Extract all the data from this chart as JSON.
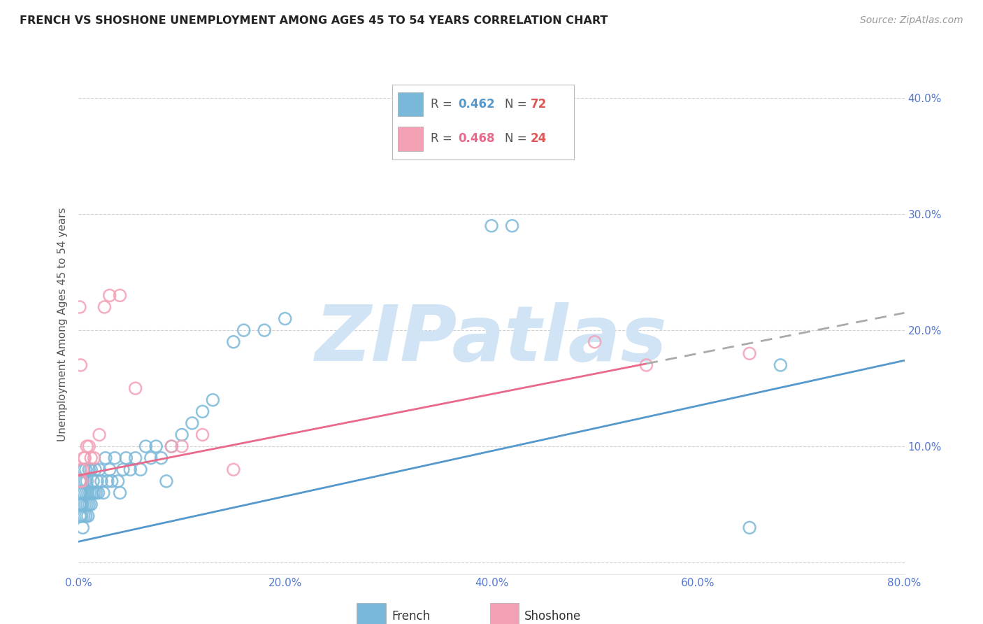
{
  "title": "FRENCH VS SHOSHONE UNEMPLOYMENT AMONG AGES 45 TO 54 YEARS CORRELATION CHART",
  "source": "Source: ZipAtlas.com",
  "ylabel": "Unemployment Among Ages 45 to 54 years",
  "xlim": [
    0.0,
    0.8
  ],
  "ylim": [
    -0.01,
    0.42
  ],
  "xticks": [
    0.0,
    0.1,
    0.2,
    0.3,
    0.4,
    0.5,
    0.6,
    0.7,
    0.8
  ],
  "yticks": [
    0.0,
    0.1,
    0.2,
    0.3,
    0.4
  ],
  "ytick_labels": [
    "",
    "10.0%",
    "20.0%",
    "30.0%",
    "40.0%"
  ],
  "xtick_labels": [
    "0.0%",
    "",
    "20.0%",
    "",
    "40.0%",
    "",
    "60.0%",
    "",
    "80.0%"
  ],
  "french_color": "#7ab8d9",
  "shoshone_color": "#f4a0b5",
  "french_line_color": "#5599cc",
  "shoshone_line_color": "#e8698a",
  "french_R": 0.462,
  "french_N": 72,
  "shoshone_R": 0.468,
  "shoshone_N": 24,
  "background_color": "#ffffff",
  "grid_color": "#cccccc",
  "axis_label_color": "#5577cc",
  "watermark": "ZIPatlas",
  "watermark_color": "#d0e4f5",
  "french_line_intercept": 0.018,
  "french_line_slope": 0.195,
  "shoshone_line_intercept": 0.075,
  "shoshone_line_slope": 0.175,
  "french_x": [
    0.001,
    0.001,
    0.001,
    0.001,
    0.002,
    0.002,
    0.002,
    0.002,
    0.003,
    0.003,
    0.003,
    0.003,
    0.004,
    0.004,
    0.004,
    0.005,
    0.005,
    0.005,
    0.006,
    0.006,
    0.007,
    0.007,
    0.007,
    0.008,
    0.008,
    0.009,
    0.009,
    0.01,
    0.01,
    0.011,
    0.012,
    0.012,
    0.013,
    0.014,
    0.015,
    0.016,
    0.017,
    0.018,
    0.019,
    0.02,
    0.022,
    0.024,
    0.026,
    0.028,
    0.03,
    0.032,
    0.035,
    0.038,
    0.04,
    0.043,
    0.046,
    0.05,
    0.055,
    0.06,
    0.065,
    0.07,
    0.075,
    0.08,
    0.085,
    0.09,
    0.1,
    0.11,
    0.12,
    0.13,
    0.15,
    0.16,
    0.18,
    0.2,
    0.4,
    0.42,
    0.65,
    0.68
  ],
  "french_y": [
    0.05,
    0.06,
    0.04,
    0.07,
    0.05,
    0.07,
    0.04,
    0.06,
    0.05,
    0.07,
    0.04,
    0.06,
    0.05,
    0.07,
    0.03,
    0.06,
    0.04,
    0.08,
    0.05,
    0.07,
    0.04,
    0.06,
    0.08,
    0.05,
    0.07,
    0.04,
    0.06,
    0.05,
    0.08,
    0.06,
    0.05,
    0.08,
    0.06,
    0.07,
    0.06,
    0.08,
    0.06,
    0.07,
    0.06,
    0.08,
    0.07,
    0.06,
    0.09,
    0.07,
    0.08,
    0.07,
    0.09,
    0.07,
    0.06,
    0.08,
    0.09,
    0.08,
    0.09,
    0.08,
    0.1,
    0.09,
    0.1,
    0.09,
    0.07,
    0.1,
    0.11,
    0.12,
    0.13,
    0.14,
    0.19,
    0.2,
    0.2,
    0.21,
    0.29,
    0.29,
    0.03,
    0.17
  ],
  "shoshone_x": [
    0.001,
    0.001,
    0.002,
    0.002,
    0.003,
    0.004,
    0.005,
    0.006,
    0.008,
    0.01,
    0.012,
    0.015,
    0.02,
    0.025,
    0.03,
    0.04,
    0.055,
    0.09,
    0.1,
    0.12,
    0.15,
    0.5,
    0.55,
    0.65
  ],
  "shoshone_y": [
    0.22,
    0.07,
    0.17,
    0.08,
    0.07,
    0.08,
    0.09,
    0.09,
    0.1,
    0.1,
    0.09,
    0.09,
    0.11,
    0.22,
    0.23,
    0.23,
    0.15,
    0.1,
    0.1,
    0.11,
    0.08,
    0.19,
    0.17,
    0.18
  ]
}
